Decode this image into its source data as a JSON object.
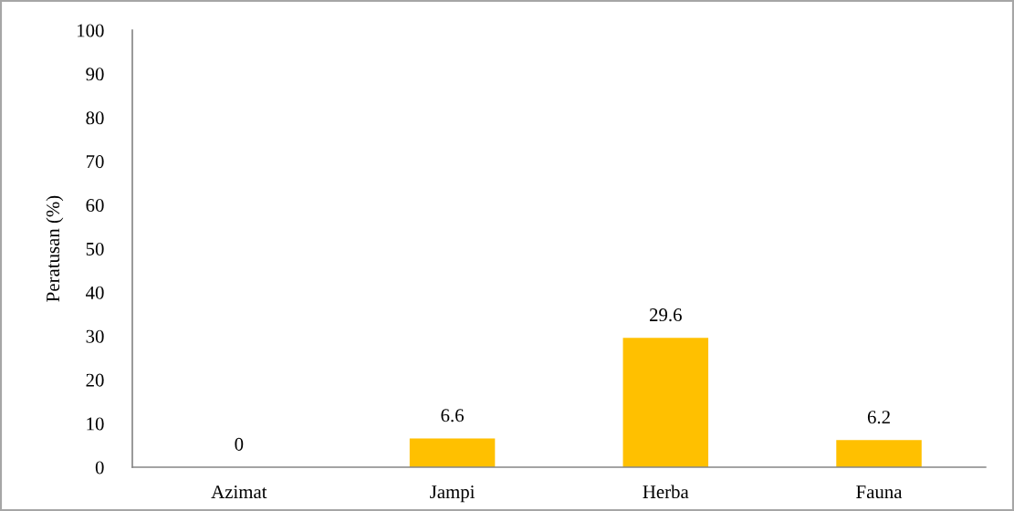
{
  "chart_data": {
    "type": "bar",
    "ylabel": "Peratusan (%)",
    "categories": [
      "Azimat",
      "Jampi",
      "Herba",
      "Fauna"
    ],
    "values": [
      0,
      6.6,
      29.6,
      6.2
    ],
    "color": "#ffc000",
    "ylim": [
      0,
      100
    ],
    "yticks": [
      0,
      10,
      20,
      30,
      40,
      50,
      60,
      70,
      80,
      90,
      100
    ],
    "data_labels": true,
    "grid": false,
    "legend": false
  }
}
